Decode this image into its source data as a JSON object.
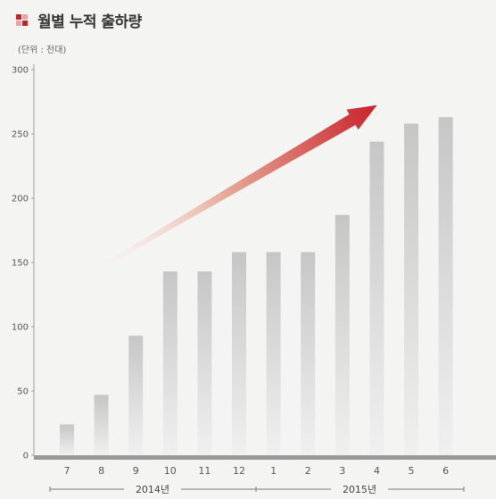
{
  "title": "월별 누적 출하량",
  "unit_note": "(단위 : 천대)",
  "colors": {
    "background": "#f4f5f3",
    "axis": "#999999",
    "bar_top": "#c6c6c6",
    "bar_bottom": "#f0f0f0",
    "arrow_start": "#fbeae6",
    "arrow_end": "#c8202b",
    "icon_red": "#c8202b",
    "icon_pink": "#e8a3a6"
  },
  "chart_data": {
    "type": "bar",
    "title": "월별 누적 출하량",
    "unit": "(단위 : 천대)",
    "categories": [
      "7",
      "8",
      "9",
      "10",
      "11",
      "12",
      "1",
      "2",
      "3",
      "4",
      "5",
      "6"
    ],
    "values": [
      24,
      47,
      93,
      143,
      143,
      158,
      158,
      158,
      187,
      244,
      258,
      263
    ],
    "ylim": [
      0,
      300
    ],
    "yticks": [
      0,
      50,
      100,
      150,
      200,
      250,
      300
    ],
    "year_groups": [
      {
        "label": "2014년",
        "categories": [
          "7",
          "8",
          "9",
          "10",
          "11",
          "12"
        ]
      },
      {
        "label": "2015년",
        "categories": [
          "1",
          "2",
          "3",
          "4",
          "5",
          "6"
        ]
      }
    ],
    "annotation": "rising trend arrow",
    "grid": false,
    "legend": "none"
  }
}
